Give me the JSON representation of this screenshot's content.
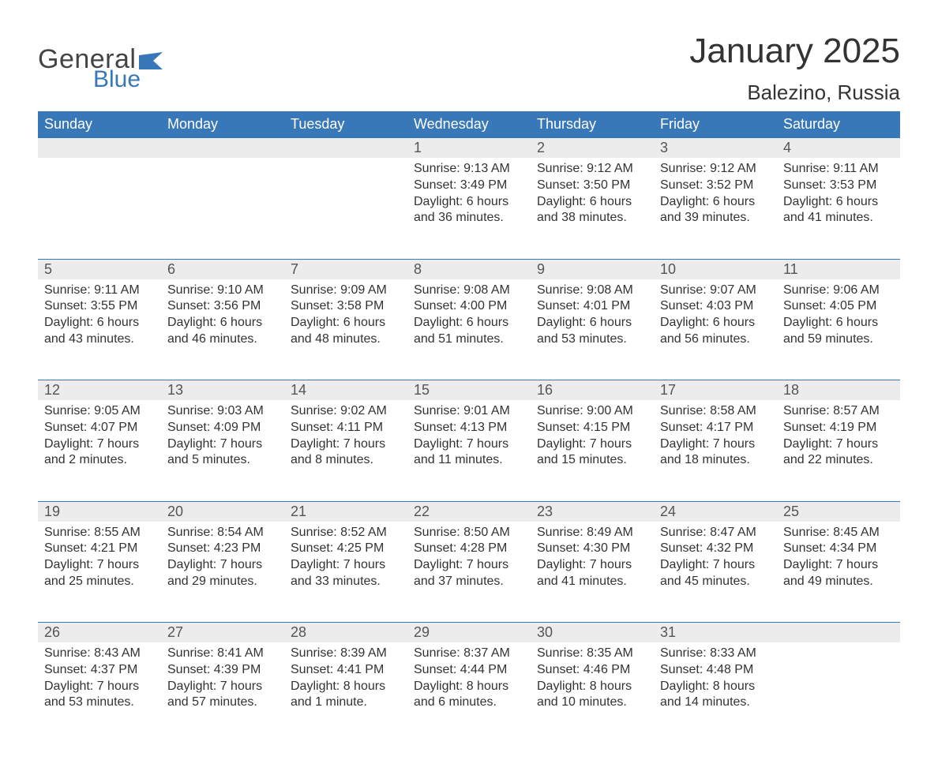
{
  "brand": {
    "word1": "General",
    "word2": "Blue"
  },
  "title": "January 2025",
  "location": "Balezino, Russia",
  "colors": {
    "accent": "#3978b8",
    "dayband_bg": "#ececec",
    "text": "#333333",
    "page_bg": "#ffffff"
  },
  "font": {
    "title_size_pt": 33,
    "location_size_pt": 20,
    "header_size_pt": 14,
    "body_size_pt": 12
  },
  "days_of_week": [
    "Sunday",
    "Monday",
    "Tuesday",
    "Wednesday",
    "Thursday",
    "Friday",
    "Saturday"
  ],
  "weeks": [
    [
      null,
      null,
      null,
      {
        "n": "1",
        "sunrise": "Sunrise: 9:13 AM",
        "sunset": "Sunset: 3:49 PM",
        "day1": "Daylight: 6 hours",
        "day2": "and 36 minutes."
      },
      {
        "n": "2",
        "sunrise": "Sunrise: 9:12 AM",
        "sunset": "Sunset: 3:50 PM",
        "day1": "Daylight: 6 hours",
        "day2": "and 38 minutes."
      },
      {
        "n": "3",
        "sunrise": "Sunrise: 9:12 AM",
        "sunset": "Sunset: 3:52 PM",
        "day1": "Daylight: 6 hours",
        "day2": "and 39 minutes."
      },
      {
        "n": "4",
        "sunrise": "Sunrise: 9:11 AM",
        "sunset": "Sunset: 3:53 PM",
        "day1": "Daylight: 6 hours",
        "day2": "and 41 minutes."
      }
    ],
    [
      {
        "n": "5",
        "sunrise": "Sunrise: 9:11 AM",
        "sunset": "Sunset: 3:55 PM",
        "day1": "Daylight: 6 hours",
        "day2": "and 43 minutes."
      },
      {
        "n": "6",
        "sunrise": "Sunrise: 9:10 AM",
        "sunset": "Sunset: 3:56 PM",
        "day1": "Daylight: 6 hours",
        "day2": "and 46 minutes."
      },
      {
        "n": "7",
        "sunrise": "Sunrise: 9:09 AM",
        "sunset": "Sunset: 3:58 PM",
        "day1": "Daylight: 6 hours",
        "day2": "and 48 minutes."
      },
      {
        "n": "8",
        "sunrise": "Sunrise: 9:08 AM",
        "sunset": "Sunset: 4:00 PM",
        "day1": "Daylight: 6 hours",
        "day2": "and 51 minutes."
      },
      {
        "n": "9",
        "sunrise": "Sunrise: 9:08 AM",
        "sunset": "Sunset: 4:01 PM",
        "day1": "Daylight: 6 hours",
        "day2": "and 53 minutes."
      },
      {
        "n": "10",
        "sunrise": "Sunrise: 9:07 AM",
        "sunset": "Sunset: 4:03 PM",
        "day1": "Daylight: 6 hours",
        "day2": "and 56 minutes."
      },
      {
        "n": "11",
        "sunrise": "Sunrise: 9:06 AM",
        "sunset": "Sunset: 4:05 PM",
        "day1": "Daylight: 6 hours",
        "day2": "and 59 minutes."
      }
    ],
    [
      {
        "n": "12",
        "sunrise": "Sunrise: 9:05 AM",
        "sunset": "Sunset: 4:07 PM",
        "day1": "Daylight: 7 hours",
        "day2": "and 2 minutes."
      },
      {
        "n": "13",
        "sunrise": "Sunrise: 9:03 AM",
        "sunset": "Sunset: 4:09 PM",
        "day1": "Daylight: 7 hours",
        "day2": "and 5 minutes."
      },
      {
        "n": "14",
        "sunrise": "Sunrise: 9:02 AM",
        "sunset": "Sunset: 4:11 PM",
        "day1": "Daylight: 7 hours",
        "day2": "and 8 minutes."
      },
      {
        "n": "15",
        "sunrise": "Sunrise: 9:01 AM",
        "sunset": "Sunset: 4:13 PM",
        "day1": "Daylight: 7 hours",
        "day2": "and 11 minutes."
      },
      {
        "n": "16",
        "sunrise": "Sunrise: 9:00 AM",
        "sunset": "Sunset: 4:15 PM",
        "day1": "Daylight: 7 hours",
        "day2": "and 15 minutes."
      },
      {
        "n": "17",
        "sunrise": "Sunrise: 8:58 AM",
        "sunset": "Sunset: 4:17 PM",
        "day1": "Daylight: 7 hours",
        "day2": "and 18 minutes."
      },
      {
        "n": "18",
        "sunrise": "Sunrise: 8:57 AM",
        "sunset": "Sunset: 4:19 PM",
        "day1": "Daylight: 7 hours",
        "day2": "and 22 minutes."
      }
    ],
    [
      {
        "n": "19",
        "sunrise": "Sunrise: 8:55 AM",
        "sunset": "Sunset: 4:21 PM",
        "day1": "Daylight: 7 hours",
        "day2": "and 25 minutes."
      },
      {
        "n": "20",
        "sunrise": "Sunrise: 8:54 AM",
        "sunset": "Sunset: 4:23 PM",
        "day1": "Daylight: 7 hours",
        "day2": "and 29 minutes."
      },
      {
        "n": "21",
        "sunrise": "Sunrise: 8:52 AM",
        "sunset": "Sunset: 4:25 PM",
        "day1": "Daylight: 7 hours",
        "day2": "and 33 minutes."
      },
      {
        "n": "22",
        "sunrise": "Sunrise: 8:50 AM",
        "sunset": "Sunset: 4:28 PM",
        "day1": "Daylight: 7 hours",
        "day2": "and 37 minutes."
      },
      {
        "n": "23",
        "sunrise": "Sunrise: 8:49 AM",
        "sunset": "Sunset: 4:30 PM",
        "day1": "Daylight: 7 hours",
        "day2": "and 41 minutes."
      },
      {
        "n": "24",
        "sunrise": "Sunrise: 8:47 AM",
        "sunset": "Sunset: 4:32 PM",
        "day1": "Daylight: 7 hours",
        "day2": "and 45 minutes."
      },
      {
        "n": "25",
        "sunrise": "Sunrise: 8:45 AM",
        "sunset": "Sunset: 4:34 PM",
        "day1": "Daylight: 7 hours",
        "day2": "and 49 minutes."
      }
    ],
    [
      {
        "n": "26",
        "sunrise": "Sunrise: 8:43 AM",
        "sunset": "Sunset: 4:37 PM",
        "day1": "Daylight: 7 hours",
        "day2": "and 53 minutes."
      },
      {
        "n": "27",
        "sunrise": "Sunrise: 8:41 AM",
        "sunset": "Sunset: 4:39 PM",
        "day1": "Daylight: 7 hours",
        "day2": "and 57 minutes."
      },
      {
        "n": "28",
        "sunrise": "Sunrise: 8:39 AM",
        "sunset": "Sunset: 4:41 PM",
        "day1": "Daylight: 8 hours",
        "day2": "and 1 minute."
      },
      {
        "n": "29",
        "sunrise": "Sunrise: 8:37 AM",
        "sunset": "Sunset: 4:44 PM",
        "day1": "Daylight: 8 hours",
        "day2": "and 6 minutes."
      },
      {
        "n": "30",
        "sunrise": "Sunrise: 8:35 AM",
        "sunset": "Sunset: 4:46 PM",
        "day1": "Daylight: 8 hours",
        "day2": "and 10 minutes."
      },
      {
        "n": "31",
        "sunrise": "Sunrise: 8:33 AM",
        "sunset": "Sunset: 4:48 PM",
        "day1": "Daylight: 8 hours",
        "day2": "and 14 minutes."
      },
      null
    ]
  ]
}
